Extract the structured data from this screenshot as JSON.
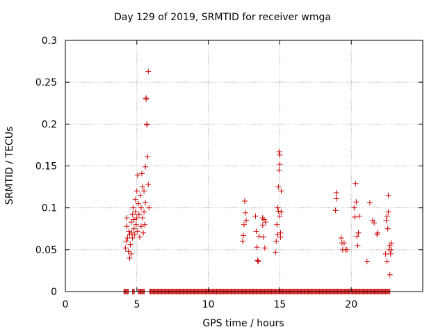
{
  "chart_data": {
    "type": "scatter",
    "title": "Day 129 of 2019, SRMTID for receiver wmga",
    "xlabel": "GPS time / hours",
    "ylabel": "SRMTID / TECUs",
    "xlim": [
      0,
      25
    ],
    "ylim": [
      0,
      0.3
    ],
    "xticks": [
      0,
      5,
      10,
      15,
      20
    ],
    "xtick_labels": [
      "0",
      "5",
      "10",
      "15",
      "20"
    ],
    "yticks": [
      0,
      0.05,
      0.1,
      0.15,
      0.2,
      0.25,
      0.3
    ],
    "ytick_labels": [
      "0",
      "0.05",
      "0.1",
      "0.15",
      "0.2",
      "0.25",
      "0.3"
    ],
    "grid": true,
    "marker": "+",
    "series": [
      {
        "name": "SRMTID",
        "color": "#cc0000",
        "points": [
          [
            4.2,
            0.052
          ],
          [
            4.25,
            0.06
          ],
          [
            4.3,
            0.088
          ],
          [
            4.3,
            0.078
          ],
          [
            4.35,
            0.064
          ],
          [
            4.4,
            0.048
          ],
          [
            4.45,
            0.072
          ],
          [
            4.5,
            0.04
          ],
          [
            4.5,
            0.068
          ],
          [
            4.55,
            0.056
          ],
          [
            4.6,
            0.045
          ],
          [
            4.6,
            0.083
          ],
          [
            4.65,
            0.07
          ],
          [
            4.7,
            0.092
          ],
          [
            4.7,
            0.064
          ],
          [
            4.75,
            0.1
          ],
          [
            4.8,
            0.075
          ],
          [
            4.8,
            0.086
          ],
          [
            4.85,
            0.068
          ],
          [
            4.9,
            0.11
          ],
          [
            4.9,
            0.095
          ],
          [
            4.95,
            0.08
          ],
          [
            5.0,
            0.12
          ],
          [
            5.0,
            0.088
          ],
          [
            5.05,
            0.139
          ],
          [
            5.05,
            0.072
          ],
          [
            5.1,
            0.105
          ],
          [
            5.15,
            0.092
          ],
          [
            5.2,
            0.065
          ],
          [
            5.25,
            0.115
          ],
          [
            5.3,
            0.1
          ],
          [
            5.3,
            0.078
          ],
          [
            5.35,
            0.141
          ],
          [
            5.4,
            0.125
          ],
          [
            5.4,
            0.088
          ],
          [
            5.45,
            0.07
          ],
          [
            5.5,
            0.12
          ],
          [
            5.5,
            0.095
          ],
          [
            5.55,
            0.08
          ],
          [
            5.6,
            0.149
          ],
          [
            5.6,
            0.106
          ],
          [
            5.65,
            0.231
          ],
          [
            5.65,
            0.23
          ],
          [
            5.7,
            0.2
          ],
          [
            5.7,
            0.199
          ],
          [
            5.75,
            0.161
          ],
          [
            5.8,
            0.263
          ],
          [
            5.8,
            0.128
          ],
          [
            5.85,
            0.1
          ],
          [
            12.4,
            0.06
          ],
          [
            12.45,
            0.067
          ],
          [
            12.5,
            0.08
          ],
          [
            12.55,
            0.108
          ],
          [
            12.6,
            0.094
          ],
          [
            12.65,
            0.085
          ],
          [
            13.3,
            0.09
          ],
          [
            13.35,
            0.072
          ],
          [
            13.4,
            0.053
          ],
          [
            13.45,
            0.037
          ],
          [
            13.5,
            0.036
          ],
          [
            13.55,
            0.066
          ],
          [
            13.8,
            0.088
          ],
          [
            13.8,
            0.079
          ],
          [
            13.85,
            0.065
          ],
          [
            13.9,
            0.086
          ],
          [
            13.95,
            0.052
          ],
          [
            14.0,
            0.083
          ],
          [
            14.7,
            0.047
          ],
          [
            14.75,
            0.06
          ],
          [
            14.8,
            0.08
          ],
          [
            14.85,
            0.1
          ],
          [
            14.85,
            0.068
          ],
          [
            14.9,
            0.125
          ],
          [
            14.9,
            0.096
          ],
          [
            14.95,
            0.145
          ],
          [
            14.95,
            0.167
          ],
          [
            15.0,
            0.163
          ],
          [
            15.0,
            0.152
          ],
          [
            15.0,
            0.09
          ],
          [
            15.05,
            0.065
          ],
          [
            15.05,
            0.07
          ],
          [
            15.1,
            0.095
          ],
          [
            15.1,
            0.12
          ],
          [
            18.9,
            0.097
          ],
          [
            18.95,
            0.111
          ],
          [
            18.95,
            0.118
          ],
          [
            19.3,
            0.064
          ],
          [
            19.35,
            0.058
          ],
          [
            19.4,
            0.05
          ],
          [
            19.5,
            0.058
          ],
          [
            19.6,
            0.05
          ],
          [
            19.7,
            0.05
          ],
          [
            20.2,
            0.1
          ],
          [
            20.25,
            0.089
          ],
          [
            20.3,
            0.129
          ],
          [
            20.35,
            0.107
          ],
          [
            20.4,
            0.066
          ],
          [
            20.45,
            0.055
          ],
          [
            20.5,
            0.07
          ],
          [
            20.55,
            0.09
          ],
          [
            21.1,
            0.036
          ],
          [
            21.3,
            0.106
          ],
          [
            21.5,
            0.085
          ],
          [
            21.6,
            0.082
          ],
          [
            21.8,
            0.068
          ],
          [
            21.85,
            0.07
          ],
          [
            22.4,
            0.045
          ],
          [
            22.45,
            0.085
          ],
          [
            22.5,
            0.09
          ],
          [
            22.5,
            0.036
          ],
          [
            22.55,
            0.075
          ],
          [
            22.6,
            0.115
          ],
          [
            22.6,
            0.095
          ],
          [
            22.65,
            0.05
          ],
          [
            22.7,
            0.02
          ],
          [
            22.7,
            0.055
          ],
          [
            22.75,
            0.045
          ],
          [
            22.8,
            0.058
          ],
          [
            22.8,
            0.05
          ]
        ]
      }
    ],
    "zero_band": {
      "description": "dense run of zero-valued samples along y = 0",
      "segments": [
        [
          4.1,
          4.45
        ],
        [
          4.7,
          4.85
        ],
        [
          5.1,
          5.55
        ],
        [
          5.9,
          22.75
        ]
      ]
    }
  }
}
